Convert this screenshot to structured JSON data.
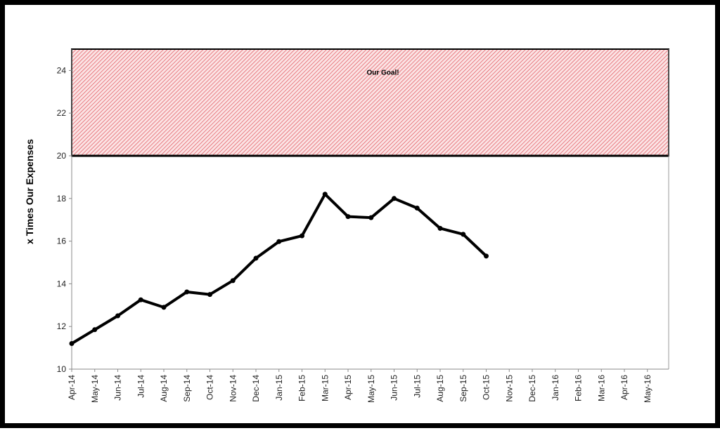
{
  "chart_data": {
    "type": "line",
    "ylabel": "x Times Our Expenses",
    "xlabel": "",
    "title": "",
    "ylim": [
      10,
      25
    ],
    "yticks": [
      10,
      12,
      14,
      16,
      18,
      20,
      22,
      24
    ],
    "grid": false,
    "categories": [
      "Apr-14",
      "May-14",
      "Jun-14",
      "Jul-14",
      "Aug-14",
      "Sep-14",
      "Oct-14",
      "Nov-14",
      "Dec-14",
      "Jan-15",
      "Feb-15",
      "Mar-15",
      "Apr-15",
      "May-15",
      "Jun-15",
      "Jul-15",
      "Aug-15",
      "Sep-15",
      "Oct-15",
      "Nov-15",
      "Dec-15",
      "Jan-16",
      "Feb-16",
      "Mar-16",
      "Apr-16",
      "May-16"
    ],
    "series": [
      {
        "values": [
          11.2,
          11.85,
          12.5,
          13.25,
          12.9,
          13.62,
          13.5,
          14.15,
          15.2,
          15.98,
          16.25,
          18.2,
          17.15,
          17.1,
          18.0,
          17.55,
          16.6,
          16.32,
          15.3,
          null,
          null,
          null,
          null,
          null,
          null,
          null
        ]
      }
    ],
    "annotations": [
      {
        "text": "Our Goal!",
        "y_range": [
          20,
          25
        ]
      }
    ],
    "colors": {
      "line": "#000000",
      "goal_hatch": "#e0525a",
      "goal_fill": "#fbe3e4"
    }
  }
}
